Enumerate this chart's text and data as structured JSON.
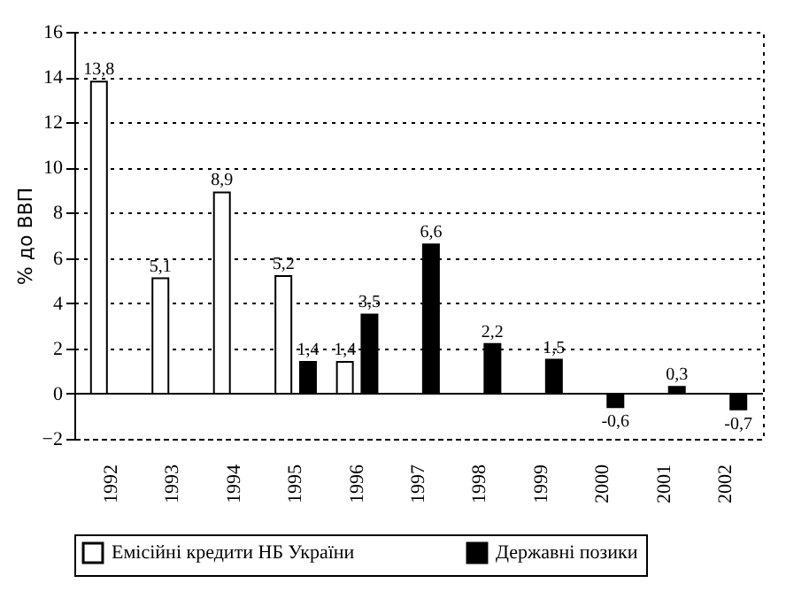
{
  "chart_data": {
    "type": "bar",
    "ylabel": "% до ВВП",
    "categories": [
      "1992",
      "1993",
      "1994",
      "1995",
      "1996",
      "1997",
      "1998",
      "1999",
      "2000",
      "2001",
      "2002"
    ],
    "series": [
      {
        "name": "Емісійні кредити НБ України",
        "color": "#ffffff",
        "values": [
          13.8,
          5.1,
          8.9,
          5.2,
          1.4,
          null,
          null,
          null,
          null,
          null,
          null
        ],
        "value_labels": [
          "13,8",
          "5,1",
          "8,9",
          "5,2",
          "1,4",
          null,
          null,
          null,
          null,
          null,
          null
        ]
      },
      {
        "name": "Державні позики",
        "color": "#000000",
        "values": [
          null,
          null,
          null,
          1.4,
          3.5,
          6.6,
          2.2,
          1.5,
          -0.6,
          0.3,
          -0.7
        ],
        "value_labels": [
          null,
          null,
          null,
          "1,4",
          "3,5",
          "6,6",
          "2,2",
          "1,5",
          "-0,6",
          "0,3",
          "-0,7"
        ]
      }
    ],
    "ylim": [
      -2,
      16
    ],
    "yticks": [
      -2,
      0,
      2,
      4,
      6,
      8,
      10,
      12,
      14,
      16
    ],
    "grid": "y",
    "legend": "bottom"
  }
}
